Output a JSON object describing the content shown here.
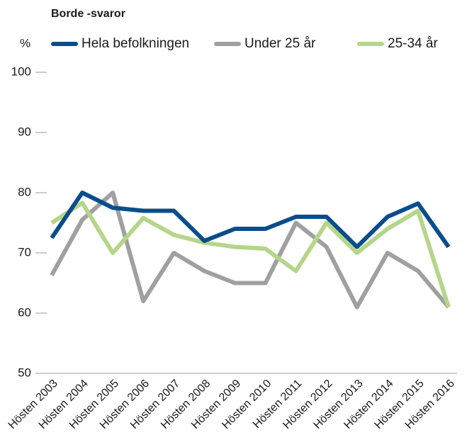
{
  "chart_data": {
    "type": "line",
    "title": "Borde -svaror",
    "ylabel": "%",
    "categories": [
      "Hösten 2003",
      "Hösten 2004",
      "Hösten 2005",
      "Hösten 2006",
      "Hösten 2007",
      "Hösten 2008",
      "Hösten 2009",
      "Hösten 2010",
      "Hösten 2011",
      "Hösten 2012",
      "Hösten 2013",
      "Hösten 2014",
      "Hösten 2015",
      "Hösten 2016"
    ],
    "series": [
      {
        "name": "Hela befolkningen",
        "color": "#0a4d8c",
        "values": [
          72.5,
          80,
          77.5,
          77,
          77,
          72,
          74,
          74,
          76,
          76,
          71,
          76,
          78.2,
          71
        ]
      },
      {
        "name": "Under 25 år",
        "color": "#a0a0a0",
        "values": [
          66.3,
          75.5,
          80,
          62,
          70,
          67,
          65,
          65,
          75,
          71,
          61,
          70,
          67,
          61
        ]
      },
      {
        "name": "25-34 år",
        "color": "#b5d68a",
        "values": [
          75,
          78.3,
          70,
          75.8,
          73,
          71.7,
          71,
          70.7,
          67,
          75,
          70,
          74,
          77,
          61
        ]
      }
    ],
    "ylim": [
      50,
      100
    ],
    "yticks": [
      50,
      60,
      70,
      80,
      90,
      100
    ]
  }
}
